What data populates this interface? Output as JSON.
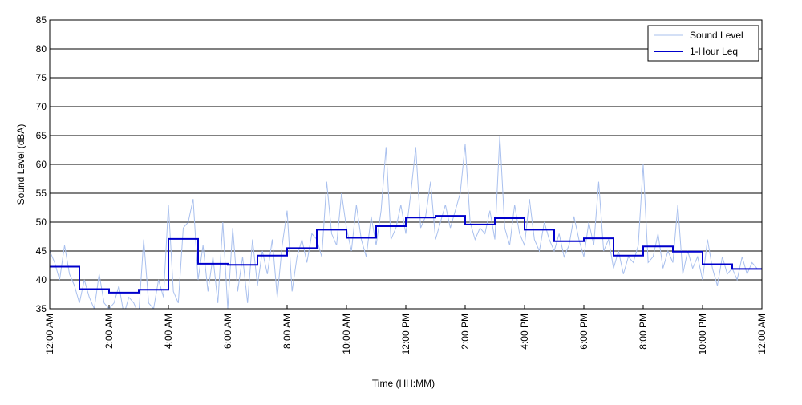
{
  "chart_data": {
    "type": "line",
    "xlabel": "Time (HH:MM)",
    "ylabel": "Sound Level (dBA)",
    "xlim": [
      0,
      1440
    ],
    "ylim": [
      35,
      85
    ],
    "xticks": [
      {
        "value": 0,
        "label": "12:00 AM"
      },
      {
        "value": 120,
        "label": "2:00 AM"
      },
      {
        "value": 240,
        "label": "4:00 AM"
      },
      {
        "value": 360,
        "label": "6:00 AM"
      },
      {
        "value": 480,
        "label": "8:00 AM"
      },
      {
        "value": 600,
        "label": "10:00 AM"
      },
      {
        "value": 720,
        "label": "12:00 PM"
      },
      {
        "value": 840,
        "label": "2:00 PM"
      },
      {
        "value": 960,
        "label": "4:00 PM"
      },
      {
        "value": 1080,
        "label": "6:00 PM"
      },
      {
        "value": 1200,
        "label": "8:00 PM"
      },
      {
        "value": 1320,
        "label": "10:00 PM"
      },
      {
        "value": 1440,
        "label": "12:00 AM"
      }
    ],
    "yticks": [
      35,
      40,
      45,
      50,
      55,
      60,
      65,
      70,
      75,
      80,
      85
    ],
    "grid": true,
    "legend": "upper right",
    "series": [
      {
        "name": "Sound Level",
        "color": "#a9c0ee",
        "drawstyle": "line",
        "x": [
          0,
          10,
          20,
          30,
          40,
          50,
          60,
          70,
          80,
          90,
          100,
          110,
          120,
          130,
          140,
          150,
          160,
          170,
          180,
          190,
          200,
          210,
          220,
          230,
          240,
          250,
          260,
          270,
          280,
          290,
          300,
          310,
          320,
          330,
          340,
          350,
          360,
          370,
          380,
          390,
          400,
          410,
          420,
          430,
          440,
          450,
          460,
          470,
          480,
          490,
          500,
          510,
          520,
          530,
          540,
          550,
          560,
          570,
          580,
          590,
          600,
          610,
          620,
          630,
          640,
          650,
          660,
          670,
          680,
          690,
          700,
          710,
          720,
          730,
          740,
          750,
          760,
          770,
          780,
          790,
          800,
          810,
          820,
          830,
          840,
          850,
          860,
          870,
          880,
          890,
          900,
          910,
          920,
          930,
          940,
          950,
          960,
          970,
          980,
          990,
          1000,
          1010,
          1020,
          1030,
          1040,
          1050,
          1060,
          1070,
          1080,
          1090,
          1100,
          1110,
          1120,
          1130,
          1140,
          1150,
          1160,
          1170,
          1180,
          1190,
          1200,
          1210,
          1220,
          1230,
          1240,
          1250,
          1260,
          1270,
          1280,
          1290,
          1300,
          1310,
          1320,
          1330,
          1340,
          1350,
          1360,
          1370,
          1380,
          1390,
          1400,
          1410,
          1420,
          1430
        ],
        "values": [
          45,
          43,
          40,
          46,
          41,
          39,
          36,
          40,
          37,
          35,
          41,
          36,
          35,
          36,
          39,
          34,
          37,
          36,
          34,
          47,
          36,
          35,
          40,
          37,
          53,
          38,
          36,
          49,
          50,
          54,
          40,
          46,
          38,
          44,
          36,
          50,
          35,
          49,
          38,
          44,
          36,
          47,
          39,
          45,
          41,
          47,
          37,
          46,
          52,
          38,
          44,
          47,
          43,
          48,
          47,
          44,
          57,
          48,
          46,
          55,
          49,
          45,
          53,
          47,
          44,
          51,
          46,
          52,
          63,
          47,
          49,
          53,
          48,
          55,
          63,
          49,
          51,
          57,
          47,
          50,
          53,
          49,
          52,
          55,
          63.5,
          50,
          47,
          49,
          48,
          52,
          47,
          65,
          49,
          46,
          53,
          48,
          46,
          54,
          47,
          45,
          50,
          47,
          45,
          48,
          44,
          46,
          51,
          47,
          44,
          50,
          46,
          57,
          45,
          47,
          42,
          45,
          41,
          44,
          43,
          46,
          60,
          43,
          44,
          48,
          42,
          45,
          43,
          53,
          41,
          45,
          42,
          44,
          40,
          47,
          42,
          39,
          44,
          41,
          42,
          40,
          44,
          41,
          43,
          42
        ]
      },
      {
        "name": "1-Hour Leq",
        "color": "#0000cc",
        "drawstyle": "steps-post",
        "x": [
          0,
          60,
          120,
          180,
          240,
          300,
          360,
          420,
          480,
          540,
          600,
          660,
          720,
          780,
          840,
          900,
          960,
          1020,
          1080,
          1140,
          1200,
          1260,
          1320,
          1380
        ],
        "values": [
          42.3,
          38.4,
          37.8,
          38.3,
          47.1,
          42.8,
          42.6,
          44.2,
          45.5,
          48.7,
          47.3,
          49.3,
          50.8,
          51.1,
          49.6,
          50.7,
          48.7,
          46.7,
          47.2,
          44.2,
          45.8,
          44.9,
          42.7,
          41.9
        ]
      }
    ]
  }
}
